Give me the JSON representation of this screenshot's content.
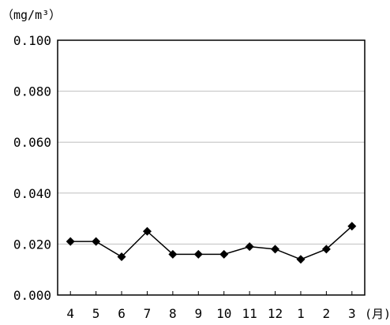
{
  "chart_data": {
    "type": "line",
    "title": "",
    "ylabel": "（mg/m³）",
    "xlabel": "(月)",
    "categories": [
      "4",
      "5",
      "6",
      "7",
      "8",
      "9",
      "10",
      "11",
      "12",
      "1",
      "2",
      "3"
    ],
    "series": [
      {
        "values": [
          0.021,
          0.021,
          0.015,
          0.025,
          0.016,
          0.016,
          0.016,
          0.019,
          0.018,
          0.014,
          0.018,
          0.027
        ]
      }
    ],
    "ylim": [
      0,
      0.1
    ],
    "yticks": [
      "0.000",
      "0.020",
      "0.040",
      "0.060",
      "0.080",
      "0.100"
    ],
    "grid": true,
    "legend": "none",
    "colors": {
      "line": "#000000",
      "grid": "#bfbfbf",
      "frame": "#000000"
    }
  }
}
